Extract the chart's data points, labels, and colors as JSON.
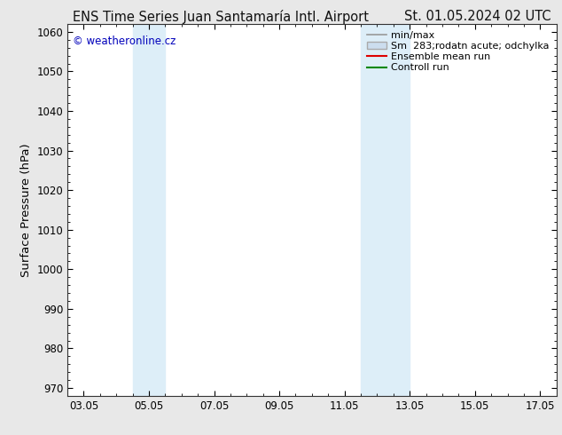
{
  "title_left": "ENS Time Series Juan Santamaría Intl. Airport",
  "title_right": "St. 01.05.2024 02 UTC",
  "ylabel": "Surface Pressure (hPa)",
  "ylim": [
    968,
    1062
  ],
  "yticks": [
    970,
    980,
    990,
    1000,
    1010,
    1020,
    1030,
    1040,
    1050,
    1060
  ],
  "xlim": [
    2.5,
    17.5
  ],
  "xtick_positions": [
    3,
    5,
    7,
    9,
    11,
    13,
    15,
    17
  ],
  "xtick_labels": [
    "03.05",
    "05.05",
    "07.05",
    "09.05",
    "11.05",
    "13.05",
    "15.05",
    "17.05"
  ],
  "shaded_bands": [
    {
      "x_start": 4.5,
      "x_end": 5.5,
      "color": "#ddeef8"
    },
    {
      "x_start": 11.5,
      "x_end": 13.0,
      "color": "#ddeef8"
    }
  ],
  "watermark_text": "© weatheronline.cz",
  "watermark_color": "#0000bb",
  "legend_entries": [
    {
      "label": "min/max",
      "type": "line",
      "color": "#999999",
      "lw": 1.2
    },
    {
      "label": "Sm  283;rodatn acute; odchylka",
      "type": "patch",
      "facecolor": "#ccddee",
      "edgecolor": "#aaaaaa"
    },
    {
      "label": "Ensemble mean run",
      "type": "line",
      "color": "#dd0000",
      "lw": 1.5
    },
    {
      "label": "Controll run",
      "type": "line",
      "color": "#008800",
      "lw": 1.5
    }
  ],
  "fig_bg_color": "#e8e8e8",
  "plot_bg_color": "#ffffff",
  "title_bg_color": "#e8e8e8",
  "title_fontsize": 10.5,
  "tick_fontsize": 8.5,
  "ylabel_fontsize": 9.5,
  "legend_fontsize": 8
}
